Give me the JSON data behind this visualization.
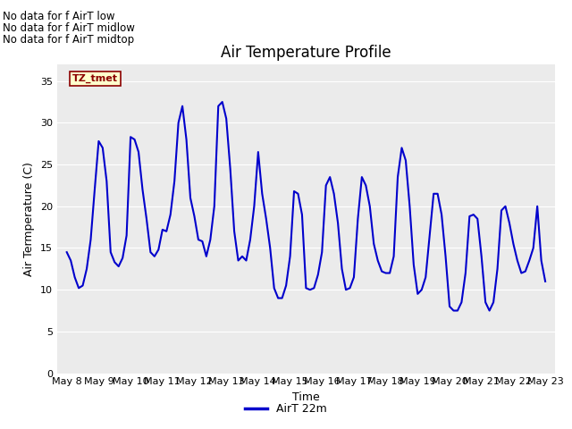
{
  "title": "Air Temperature Profile",
  "xlabel": "Time",
  "ylabel": "Air Termperature (C)",
  "ylim": [
    0,
    37
  ],
  "yticks": [
    0,
    5,
    10,
    15,
    20,
    25,
    30,
    35
  ],
  "line_color": "#0000CC",
  "line_width": 1.5,
  "legend_label": "AirT 22m",
  "legend_line_color": "#0000CC",
  "no_data_texts": [
    "No data for f AirT low",
    "No data for f AirT midlow",
    "No data for f AirT midtop"
  ],
  "tz_label": "TZ_tmet",
  "x_tick_labels": [
    "May 8",
    "May 9",
    "May 10",
    "May 11",
    "May 12",
    "May 13",
    "May 14",
    "May 15",
    "May 16",
    "May 17",
    "May 18",
    "May 19",
    "May 20",
    "May 21",
    "May 22",
    "May 23"
  ],
  "time_values": [
    0.0,
    0.125,
    0.25,
    0.375,
    0.5,
    0.625,
    0.75,
    0.875,
    1.0,
    1.125,
    1.25,
    1.375,
    1.5,
    1.625,
    1.75,
    1.875,
    2.0,
    2.125,
    2.25,
    2.375,
    2.5,
    2.625,
    2.75,
    2.875,
    3.0,
    3.125,
    3.25,
    3.375,
    3.5,
    3.625,
    3.75,
    3.875,
    4.0,
    4.125,
    4.25,
    4.375,
    4.5,
    4.625,
    4.75,
    4.875,
    5.0,
    5.125,
    5.25,
    5.375,
    5.5,
    5.625,
    5.75,
    5.875,
    6.0,
    6.125,
    6.25,
    6.375,
    6.5,
    6.625,
    6.75,
    6.875,
    7.0,
    7.125,
    7.25,
    7.375,
    7.5,
    7.625,
    7.75,
    7.875,
    8.0,
    8.125,
    8.25,
    8.375,
    8.5,
    8.625,
    8.75,
    8.875,
    9.0,
    9.125,
    9.25,
    9.375,
    9.5,
    9.625,
    9.75,
    9.875,
    10.0,
    10.125,
    10.25,
    10.375,
    10.5,
    10.625,
    10.75,
    10.875,
    11.0,
    11.125,
    11.25,
    11.375,
    11.5,
    11.625,
    11.75,
    11.875,
    12.0,
    12.125,
    12.25,
    12.375,
    12.5,
    12.625,
    12.75,
    12.875,
    13.0,
    13.125,
    13.25,
    13.375,
    13.5,
    13.625,
    13.75,
    13.875,
    14.0,
    14.125,
    14.25,
    14.375,
    14.5,
    14.625,
    14.75,
    14.875,
    15.0
  ],
  "temp_values": [
    14.5,
    13.5,
    11.5,
    10.2,
    10.5,
    12.5,
    16.0,
    22.0,
    27.8,
    27.0,
    23.0,
    14.5,
    13.3,
    12.8,
    13.8,
    16.5,
    28.3,
    28.0,
    26.5,
    22.0,
    18.5,
    14.5,
    14.0,
    14.8,
    17.2,
    17.0,
    19.0,
    23.0,
    30.0,
    32.0,
    28.0,
    21.0,
    18.8,
    16.0,
    15.8,
    14.0,
    16.0,
    20.0,
    32.0,
    32.5,
    30.5,
    24.5,
    17.0,
    13.5,
    14.0,
    13.5,
    16.0,
    20.0,
    26.5,
    21.5,
    18.5,
    15.0,
    10.2,
    9.0,
    9.0,
    10.5,
    14.0,
    21.8,
    21.5,
    19.0,
    10.2,
    10.0,
    10.2,
    11.8,
    14.5,
    22.5,
    23.5,
    21.5,
    18.0,
    12.5,
    10.0,
    10.2,
    11.5,
    18.5,
    23.5,
    22.5,
    20.0,
    15.5,
    13.5,
    12.2,
    12.0,
    12.0,
    14.0,
    23.5,
    27.0,
    25.5,
    20.0,
    13.0,
    9.5,
    10.0,
    11.5,
    16.5,
    21.5,
    21.5,
    19.0,
    14.0,
    8.0,
    7.5,
    7.5,
    8.5,
    12.0,
    18.8,
    19.0,
    18.5,
    14.0,
    8.5,
    7.5,
    8.5,
    12.5,
    19.5,
    20.0,
    18.0,
    15.5,
    13.5,
    12.0,
    12.2,
    13.5,
    15.0,
    20.0,
    13.5,
    11.0
  ],
  "fig_bg_color": "#ffffff",
  "plot_bg_color": "#ebebeb",
  "grid_color": "#ffffff",
  "no_data_fontsize": 8.5,
  "title_fontsize": 12,
  "axis_fontsize": 9,
  "tick_fontsize": 8
}
